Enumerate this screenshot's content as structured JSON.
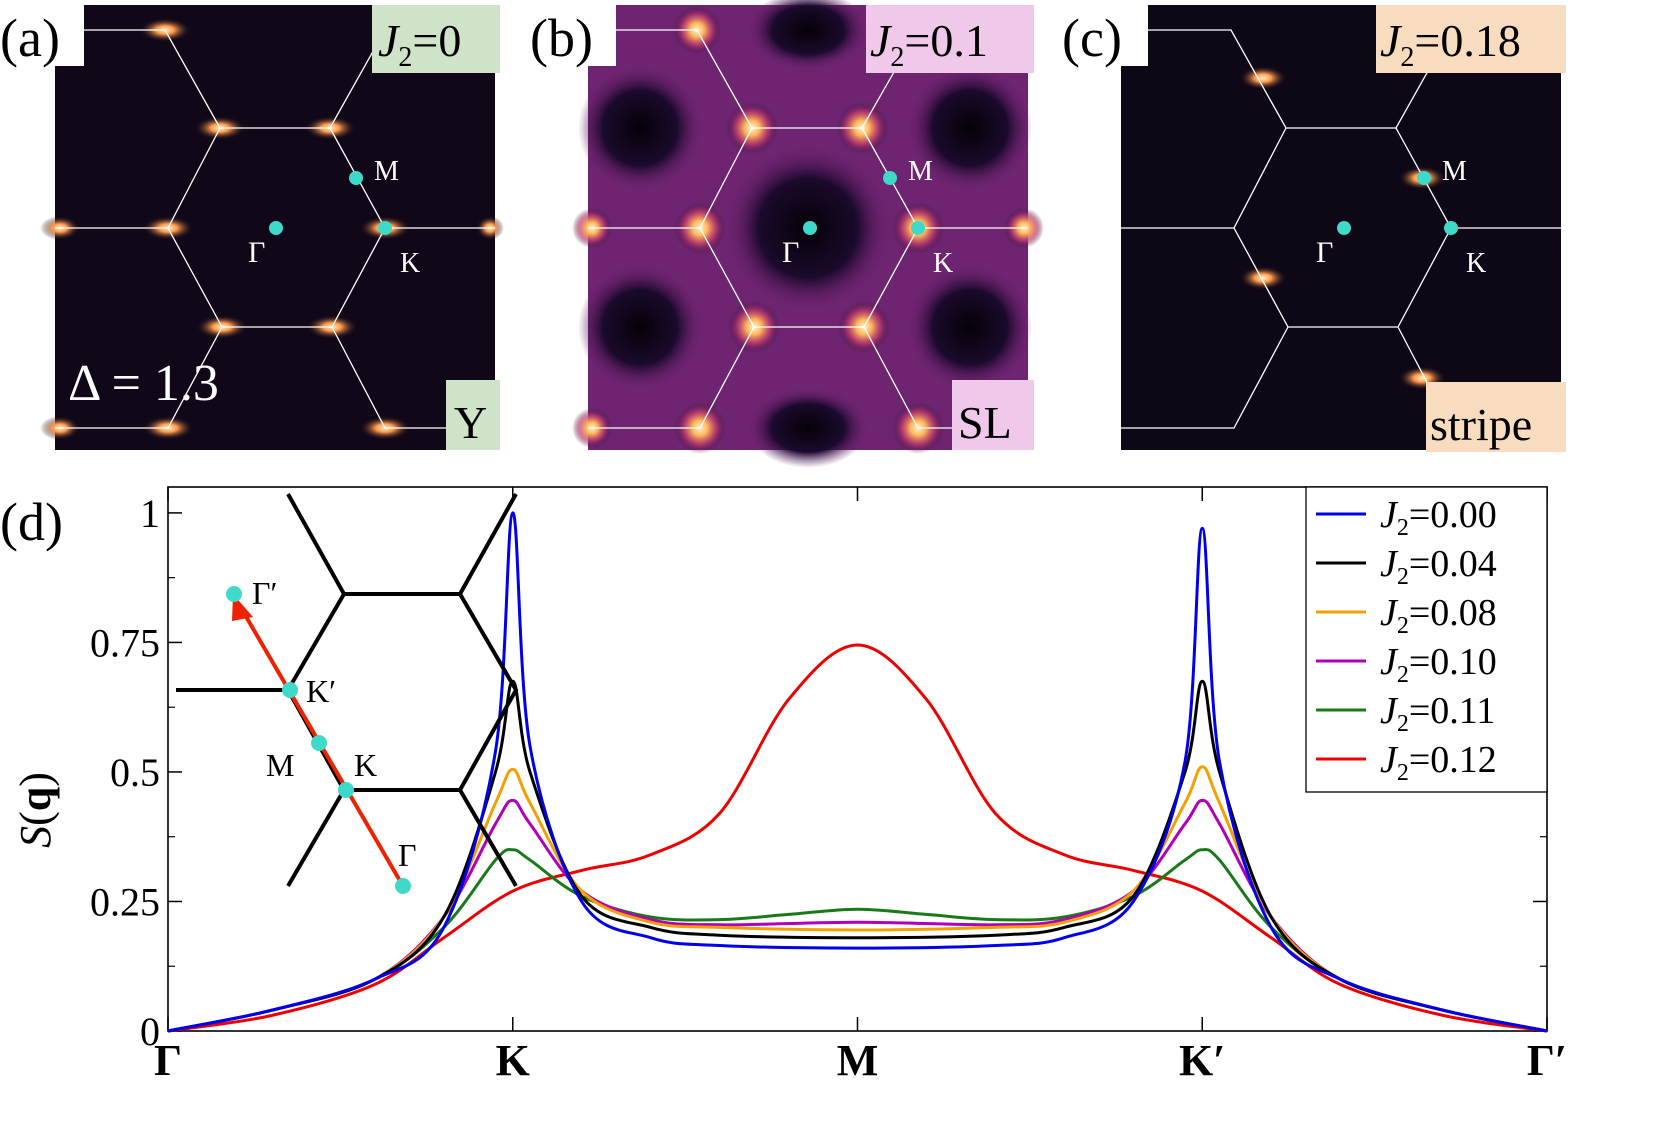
{
  "panels": [
    {
      "label": "(a)",
      "j2_sym": "J",
      "j2_sub": "2",
      "j2_value": "=0",
      "tag_bg": "#cfe3c9",
      "phase": "Y",
      "phase_bg": "#cfe3c9",
      "delta": "Δ = 1.3"
    },
    {
      "label": "(b)",
      "j2_sym": "J",
      "j2_sub": "2",
      "j2_value": "=0.1",
      "tag_bg": "#efc8ea",
      "phase": "SL",
      "phase_bg": "#efc8ea"
    },
    {
      "label": "(c)",
      "j2_sym": "J",
      "j2_sub": "2",
      "j2_value": "=0.18",
      "tag_bg": "#f8dcc0",
      "phase": "stripe",
      "phase_bg": "#f8dcc0"
    }
  ],
  "points": {
    "gamma": "Γ",
    "M": "M",
    "K": "K"
  },
  "inset": {
    "gamma_prime": "Γ′",
    "k_prime": "K′",
    "M": "M",
    "K": "K",
    "gamma": "Γ"
  },
  "chart_data": {
    "type": "line",
    "panel_label": "(d)",
    "ylabel": "S(q)",
    "xlabel": "",
    "x_ticks": [
      "Γ",
      "K",
      "M",
      "K′",
      "Γ′"
    ],
    "x_range": [
      0,
      4
    ],
    "ylim": [
      0,
      1.05
    ],
    "y_ticks": [
      "0",
      "0.25",
      "0.5",
      "0.75",
      "1"
    ],
    "y_tick_values": [
      0,
      0.25,
      0.5,
      0.75,
      1
    ],
    "legend_position": "top-right",
    "series": [
      {
        "name": "J2=0.00",
        "label_sym": "J",
        "label_sub": "2",
        "label_val": "=0.00",
        "color": "#0000ee",
        "x": [
          0,
          0.3,
          0.6,
          0.8,
          0.95,
          1.0,
          1.05,
          1.2,
          1.4,
          1.6,
          2.0,
          2.4,
          2.6,
          2.8,
          2.95,
          3.0,
          3.05,
          3.2,
          3.4,
          3.7,
          4.0
        ],
        "y": [
          0,
          0.04,
          0.1,
          0.2,
          0.54,
          1.0,
          0.55,
          0.25,
          0.18,
          0.165,
          0.16,
          0.165,
          0.18,
          0.25,
          0.52,
          0.97,
          0.52,
          0.2,
          0.1,
          0.04,
          0.0
        ]
      },
      {
        "name": "J2=0.04",
        "label_sym": "J",
        "label_sub": "2",
        "label_val": "=0.04",
        "color": "#000000",
        "x": [
          0,
          0.3,
          0.6,
          0.8,
          0.95,
          1.0,
          1.05,
          1.2,
          1.4,
          1.6,
          2.0,
          2.4,
          2.6,
          2.8,
          2.95,
          3.0,
          3.05,
          3.2,
          3.4,
          3.7,
          4.0
        ],
        "y": [
          0,
          0.04,
          0.1,
          0.22,
          0.5,
          0.675,
          0.5,
          0.26,
          0.2,
          0.185,
          0.18,
          0.185,
          0.2,
          0.26,
          0.5,
          0.675,
          0.5,
          0.22,
          0.1,
          0.04,
          0.0
        ]
      },
      {
        "name": "J2=0.08",
        "label_sym": "J",
        "label_sub": "2",
        "label_val": "=0.08",
        "color": "#f5a000",
        "x": [
          0,
          0.3,
          0.6,
          0.8,
          0.95,
          1.0,
          1.05,
          1.2,
          1.4,
          1.6,
          2.0,
          2.4,
          2.6,
          2.8,
          2.95,
          3.0,
          3.05,
          3.2,
          3.4,
          3.7,
          4.0
        ],
        "y": [
          0,
          0.04,
          0.1,
          0.22,
          0.44,
          0.505,
          0.44,
          0.27,
          0.21,
          0.2,
          0.195,
          0.2,
          0.21,
          0.27,
          0.44,
          0.51,
          0.44,
          0.22,
          0.1,
          0.04,
          0.0
        ]
      },
      {
        "name": "J2=0.10",
        "label_sym": "J",
        "label_sub": "2",
        "label_val": "=0.10",
        "color": "#b000b8",
        "x": [
          0,
          0.3,
          0.6,
          0.8,
          0.95,
          1.0,
          1.05,
          1.2,
          1.4,
          1.6,
          2.0,
          2.4,
          2.6,
          2.8,
          2.95,
          3.0,
          3.05,
          3.2,
          3.4,
          3.7,
          4.0
        ],
        "y": [
          0,
          0.04,
          0.1,
          0.22,
          0.4,
          0.445,
          0.4,
          0.27,
          0.215,
          0.205,
          0.21,
          0.205,
          0.215,
          0.27,
          0.4,
          0.445,
          0.4,
          0.22,
          0.1,
          0.04,
          0.0
        ]
      },
      {
        "name": "J2=0.11",
        "label_sym": "J",
        "label_sub": "2",
        "label_val": "=0.11",
        "color": "#1a7a1a",
        "x": [
          0,
          0.3,
          0.6,
          0.8,
          0.95,
          1.0,
          1.05,
          1.2,
          1.4,
          1.6,
          1.8,
          2.0,
          2.2,
          2.4,
          2.6,
          2.8,
          2.95,
          3.0,
          3.05,
          3.2,
          3.4,
          3.7,
          4.0
        ],
        "y": [
          0,
          0.04,
          0.1,
          0.2,
          0.33,
          0.35,
          0.33,
          0.26,
          0.22,
          0.215,
          0.225,
          0.235,
          0.225,
          0.215,
          0.22,
          0.26,
          0.33,
          0.35,
          0.33,
          0.2,
          0.1,
          0.04,
          0.0
        ]
      },
      {
        "name": "J2=0.12",
        "label_sym": "J",
        "label_sub": "2",
        "label_val": "=0.12",
        "color": "#ee0000",
        "x": [
          0,
          0.3,
          0.6,
          0.8,
          1.0,
          1.2,
          1.4,
          1.6,
          1.8,
          2.0,
          2.2,
          2.4,
          2.6,
          2.8,
          3.0,
          3.2,
          3.4,
          3.7,
          4.0
        ],
        "y": [
          0,
          0.03,
          0.09,
          0.18,
          0.27,
          0.31,
          0.34,
          0.42,
          0.64,
          0.745,
          0.64,
          0.42,
          0.34,
          0.31,
          0.27,
          0.18,
          0.09,
          0.03,
          0.0
        ]
      }
    ]
  }
}
